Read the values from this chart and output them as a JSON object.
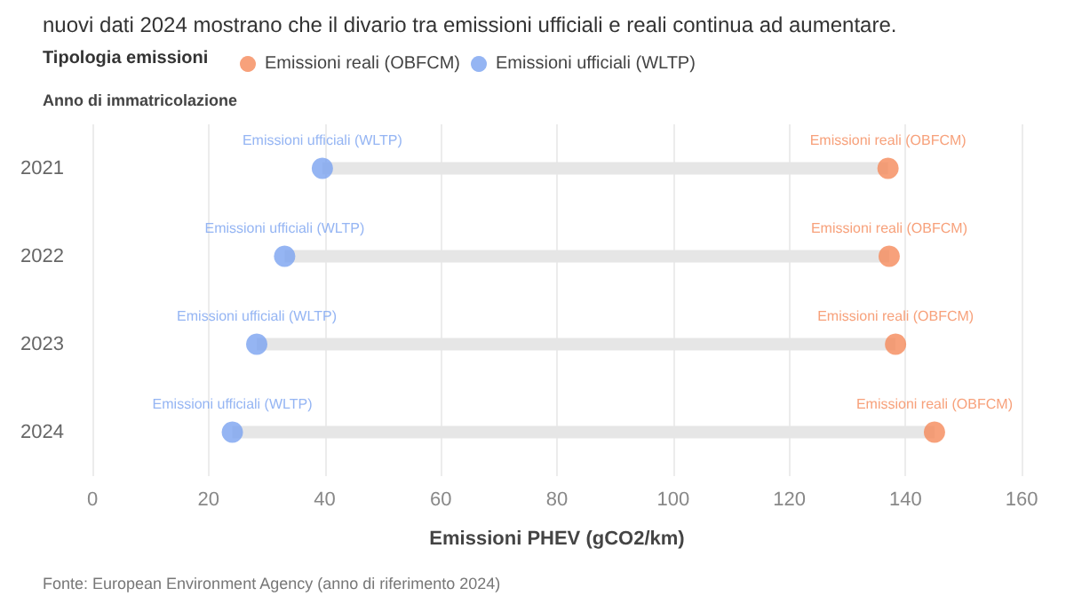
{
  "chart_data": {
    "type": "scatter",
    "orientation": "horizontal",
    "subtitle": "nuovi dati 2024 mostrano che il divario tra emissioni ufficiali e reali continua ad aumentare.",
    "legend_title": "Tipologia emissioni",
    "legend": "top left",
    "ylabel": "Anno di immatricolazione",
    "xlabel": "Emissioni PHEV (gCO2/km)",
    "categories": [
      "2021",
      "2022",
      "2023",
      "2024"
    ],
    "series": [
      {
        "name": "Emissioni reali (OBFCM)",
        "color": "#f58a5a",
        "values": [
          137,
          137.2,
          138.3,
          145
        ]
      },
      {
        "name": "Emissioni ufficiali (WLTP)",
        "color": "#7aa2f0",
        "values": [
          39.6,
          33.1,
          28.3,
          24.1
        ]
      }
    ],
    "xlim": [
      0,
      160
    ],
    "xticks": [
      0,
      20,
      40,
      60,
      80,
      100,
      120,
      140,
      160
    ],
    "grid": "x",
    "marker": "circle",
    "annotations": [
      "Fonte: European Environment Agency (anno di riferimento 2024)"
    ]
  }
}
